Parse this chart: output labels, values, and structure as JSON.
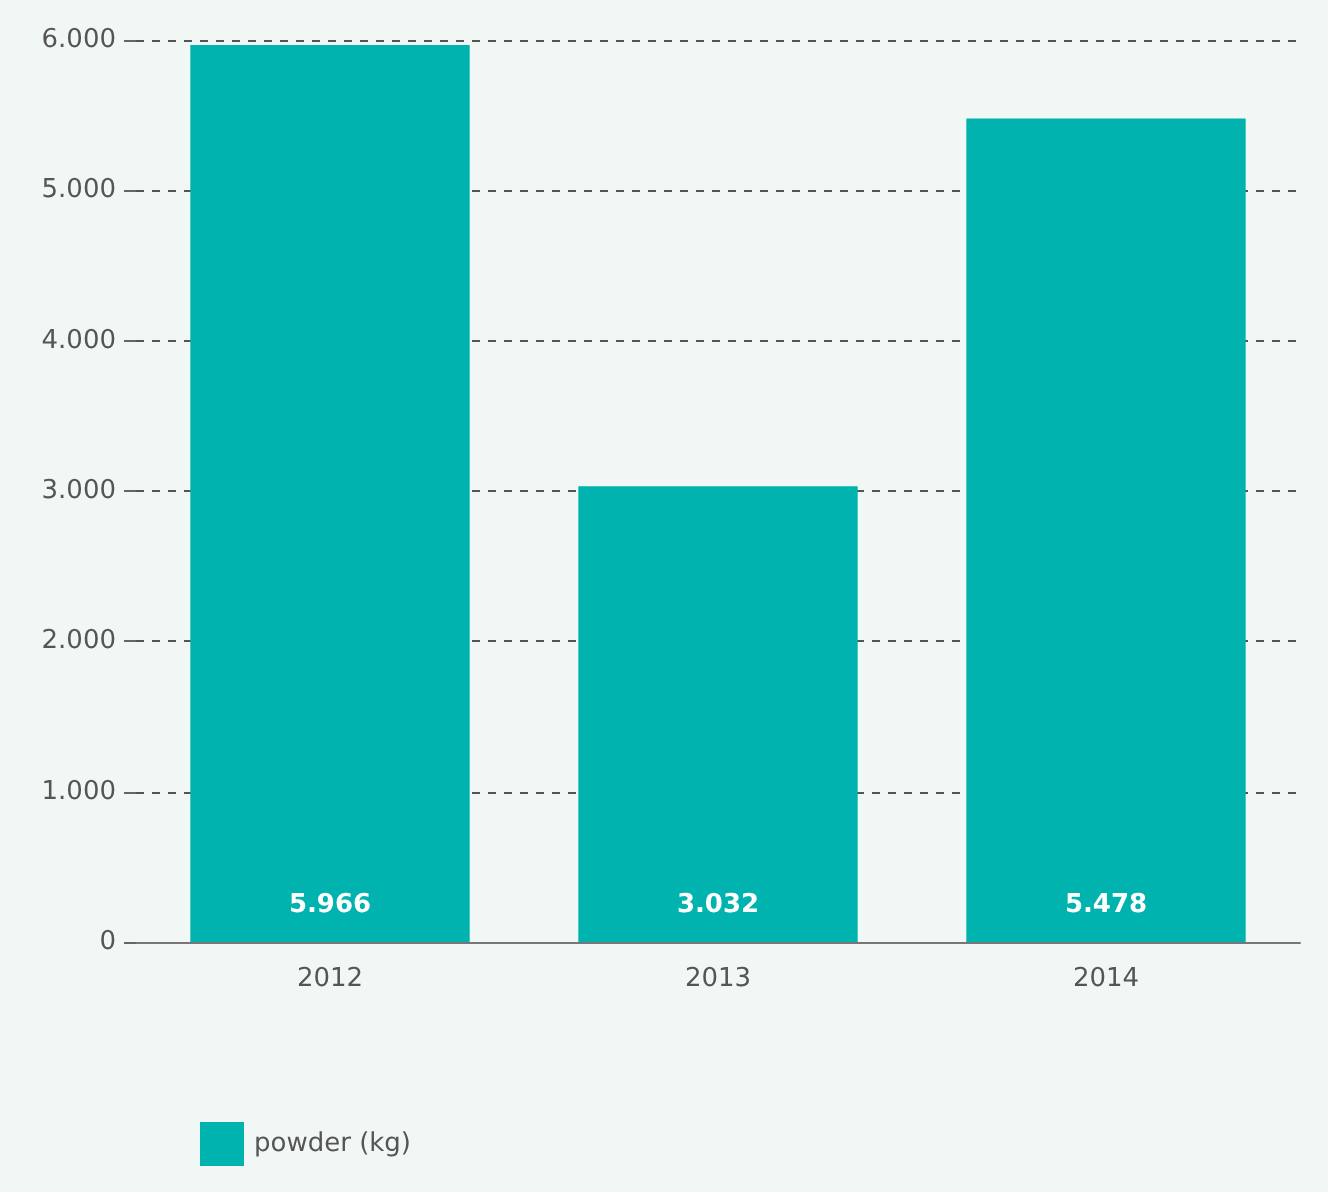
{
  "chart_data": {
    "type": "bar",
    "categories": [
      "2012",
      "2013",
      "2014"
    ],
    "series": [
      {
        "name": "powder (kg)",
        "color": "#00b3af",
        "values": [
          5966,
          3032,
          5478
        ],
        "value_labels": [
          "5.966",
          "3.032",
          "5.478"
        ]
      }
    ],
    "ylim": [
      0,
      6000
    ],
    "yticks": [
      0,
      {
        "value": 1000,
        "label": "1.000"
      },
      {
        "value": 2000,
        "label": "2.000"
      },
      {
        "value": 3000,
        "label": "3.000"
      },
      {
        "value": 4000,
        "label": "4.000"
      },
      {
        "value": 5000,
        "label": "5.000"
      },
      {
        "value": 6000,
        "label": "6.000"
      }
    ],
    "grid": "y",
    "legend": "bottom left"
  }
}
